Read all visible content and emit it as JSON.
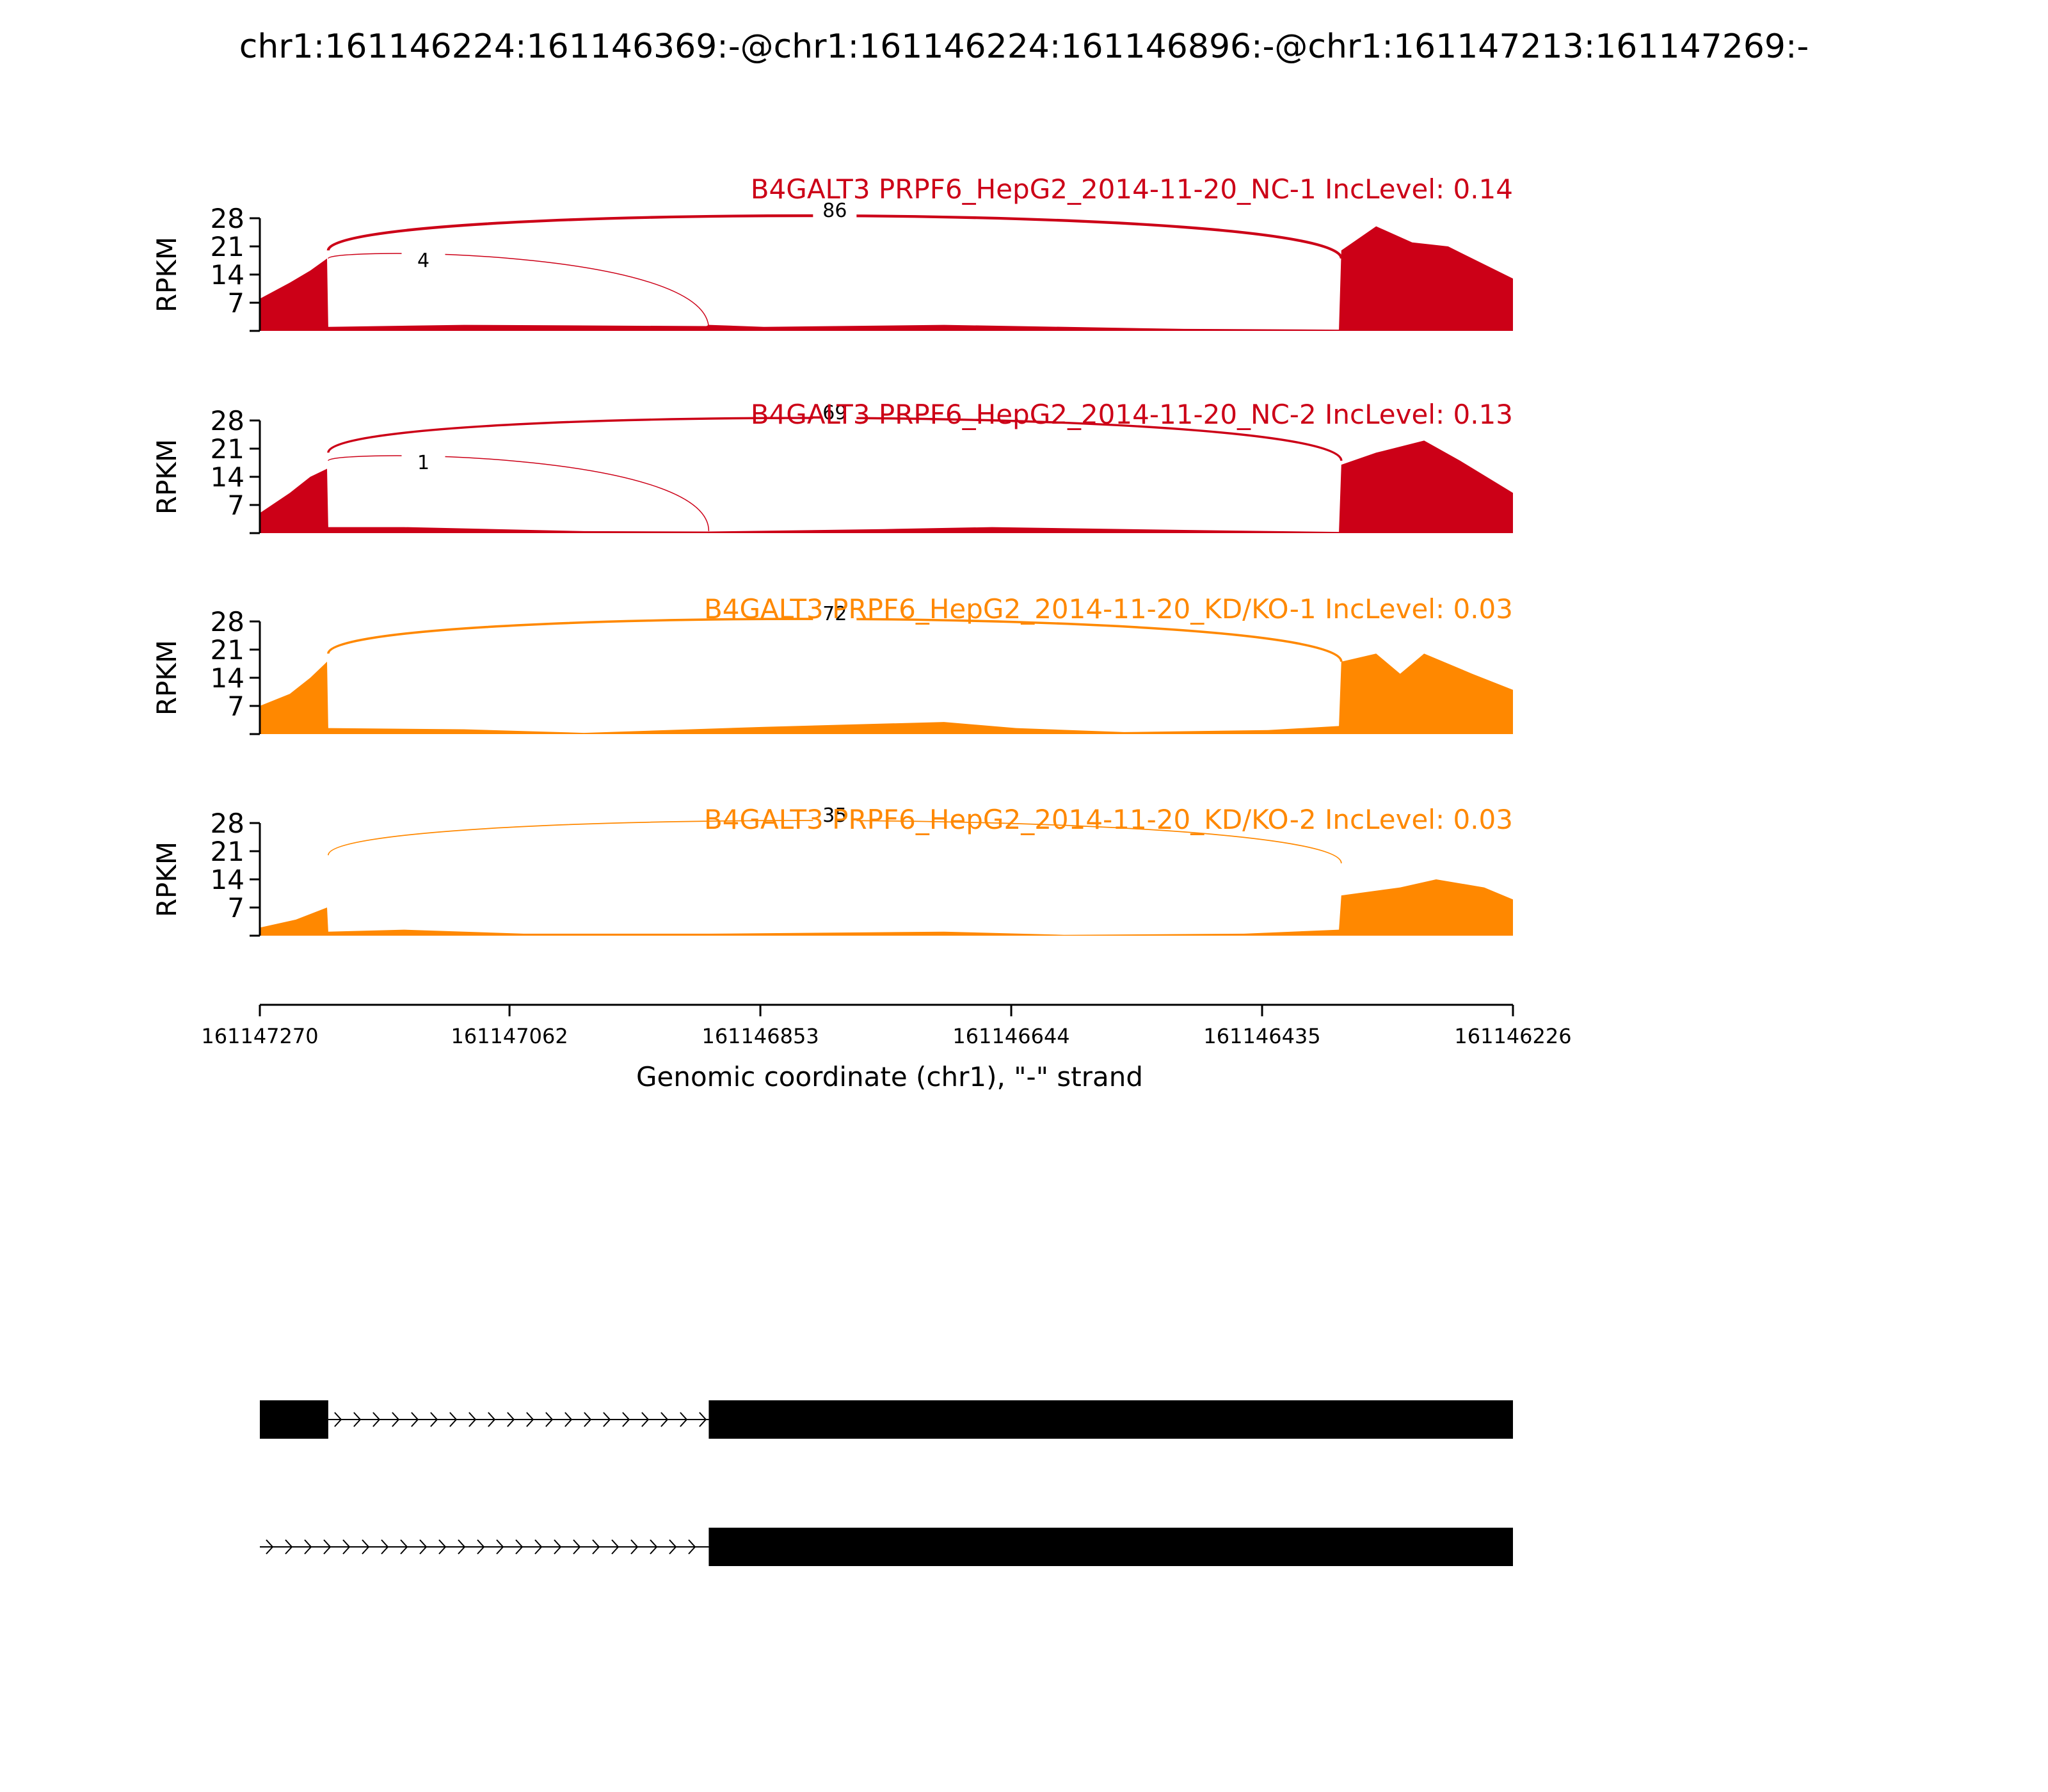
{
  "title": "chr1:161146224:161146369:-@chr1:161146224:161146896:-@chr1:161147213:161147269:-",
  "ylabel": "RPKM",
  "colors": {
    "nc": "#cc0017",
    "kd": "#ff8800",
    "axis": "#000000",
    "gene": "#000000"
  },
  "chart_data": {
    "type": "area",
    "title": "chr1:161146224:161146369:-@chr1:161146224:161146896:-@chr1:161147213:161147269:-",
    "xlabel": "Genomic coordinate (chr1), \"-\" strand",
    "ylabel": "RPKM",
    "xlim": [
      161147270,
      161146226
    ],
    "x_ticks": [
      "161147270",
      "161147062",
      "161146853",
      "161146644",
      "161146435",
      "161146226"
    ],
    "ylim": [
      0,
      28
    ],
    "y_ticks": [
      "7",
      "14",
      "21",
      "28"
    ],
    "grid": false,
    "series": [
      {
        "name": "B4GALT3 PRPF6_HepG2_2014-11-20_NC-1 IncLevel: 0.14",
        "color": "#cc0017",
        "coverage": [
          {
            "pos": 161147270,
            "rpkm": 8
          },
          {
            "pos": 161147245,
            "rpkm": 12
          },
          {
            "pos": 161147228,
            "rpkm": 15
          },
          {
            "pos": 161147214,
            "rpkm": 18
          },
          {
            "pos": 161147213,
            "rpkm": 1
          },
          {
            "pos": 161147100,
            "rpkm": 1.5
          },
          {
            "pos": 161146898,
            "rpkm": 1.2
          },
          {
            "pos": 161146896,
            "rpkm": 1.5
          },
          {
            "pos": 161146850,
            "rpkm": 1
          },
          {
            "pos": 161146700,
            "rpkm": 1.5
          },
          {
            "pos": 161146500,
            "rpkm": 0.5
          },
          {
            "pos": 161146371,
            "rpkm": 0.3
          },
          {
            "pos": 161146369,
            "rpkm": 20
          },
          {
            "pos": 161146340,
            "rpkm": 26
          },
          {
            "pos": 161146310,
            "rpkm": 22
          },
          {
            "pos": 161146280,
            "rpkm": 21
          },
          {
            "pos": 161146226,
            "rpkm": 13
          }
        ],
        "junctions": [
          {
            "from": 161147213,
            "to": 161146369,
            "reads": "86"
          },
          {
            "from": 161147213,
            "to": 161146896,
            "reads": "4"
          }
        ]
      },
      {
        "name": "B4GALT3 PRPF6_HepG2_2014-11-20_NC-2 IncLevel: 0.13",
        "color": "#cc0017",
        "coverage": [
          {
            "pos": 161147270,
            "rpkm": 5
          },
          {
            "pos": 161147245,
            "rpkm": 10
          },
          {
            "pos": 161147228,
            "rpkm": 14
          },
          {
            "pos": 161147214,
            "rpkm": 16
          },
          {
            "pos": 161147213,
            "rpkm": 1.5
          },
          {
            "pos": 161147150,
            "rpkm": 1.5
          },
          {
            "pos": 161147000,
            "rpkm": 0.5
          },
          {
            "pos": 161146896,
            "rpkm": 0.4
          },
          {
            "pos": 161146750,
            "rpkm": 1
          },
          {
            "pos": 161146660,
            "rpkm": 1.5
          },
          {
            "pos": 161146500,
            "rpkm": 0.8
          },
          {
            "pos": 161146371,
            "rpkm": 0.3
          },
          {
            "pos": 161146369,
            "rpkm": 17
          },
          {
            "pos": 161146340,
            "rpkm": 20
          },
          {
            "pos": 161146300,
            "rpkm": 23
          },
          {
            "pos": 161146270,
            "rpkm": 18
          },
          {
            "pos": 161146226,
            "rpkm": 10
          }
        ],
        "junctions": [
          {
            "from": 161147213,
            "to": 161146369,
            "reads": "69"
          },
          {
            "from": 161147213,
            "to": 161146896,
            "reads": "1"
          }
        ]
      },
      {
        "name": "B4GALT3 PRPF6_HepG2_2014-11-20_KD/KO-1 IncLevel: 0.03",
        "color": "#ff8800",
        "coverage": [
          {
            "pos": 161147270,
            "rpkm": 7
          },
          {
            "pos": 161147245,
            "rpkm": 10
          },
          {
            "pos": 161147228,
            "rpkm": 14
          },
          {
            "pos": 161147214,
            "rpkm": 18
          },
          {
            "pos": 161147213,
            "rpkm": 1.5
          },
          {
            "pos": 161147100,
            "rpkm": 1.2
          },
          {
            "pos": 161147000,
            "rpkm": 0.3
          },
          {
            "pos": 161146950,
            "rpkm": 0.8
          },
          {
            "pos": 161146850,
            "rpkm": 1.8
          },
          {
            "pos": 161146700,
            "rpkm": 3
          },
          {
            "pos": 161146640,
            "rpkm": 1.5
          },
          {
            "pos": 161146550,
            "rpkm": 0.5
          },
          {
            "pos": 161146430,
            "rpkm": 1
          },
          {
            "pos": 161146371,
            "rpkm": 2
          },
          {
            "pos": 161146369,
            "rpkm": 18
          },
          {
            "pos": 161146340,
            "rpkm": 20
          },
          {
            "pos": 161146320,
            "rpkm": 15
          },
          {
            "pos": 161146300,
            "rpkm": 20
          },
          {
            "pos": 161146260,
            "rpkm": 15
          },
          {
            "pos": 161146226,
            "rpkm": 11
          }
        ],
        "junctions": [
          {
            "from": 161147213,
            "to": 161146369,
            "reads": "72"
          }
        ]
      },
      {
        "name": "B4GALT3 PRPF6_HepG2_2014-11-20_KD/KO-2 IncLevel: 0.03",
        "color": "#ff8800",
        "coverage": [
          {
            "pos": 161147270,
            "rpkm": 2
          },
          {
            "pos": 161147240,
            "rpkm": 4
          },
          {
            "pos": 161147214,
            "rpkm": 7
          },
          {
            "pos": 161147213,
            "rpkm": 1
          },
          {
            "pos": 161147150,
            "rpkm": 1.5
          },
          {
            "pos": 161147050,
            "rpkm": 0.5
          },
          {
            "pos": 161146896,
            "rpkm": 0.5
          },
          {
            "pos": 161146700,
            "rpkm": 1
          },
          {
            "pos": 161146600,
            "rpkm": 0.2
          },
          {
            "pos": 161146450,
            "rpkm": 0.5
          },
          {
            "pos": 161146371,
            "rpkm": 1.5
          },
          {
            "pos": 161146369,
            "rpkm": 10
          },
          {
            "pos": 161146320,
            "rpkm": 12
          },
          {
            "pos": 161146290,
            "rpkm": 14
          },
          {
            "pos": 161146250,
            "rpkm": 12
          },
          {
            "pos": 161146226,
            "rpkm": 9
          }
        ],
        "junctions": [
          {
            "from": 161147213,
            "to": 161146369,
            "reads": "35"
          }
        ]
      }
    ],
    "gene_models": [
      {
        "exons": [
          [
            161147270,
            161147213
          ],
          [
            161146896,
            161146226
          ]
        ],
        "intron": [
          161147213,
          161146896
        ]
      },
      {
        "exons": [
          [
            161146896,
            161146226
          ]
        ],
        "intron": [
          161147270,
          161146896
        ]
      }
    ]
  }
}
